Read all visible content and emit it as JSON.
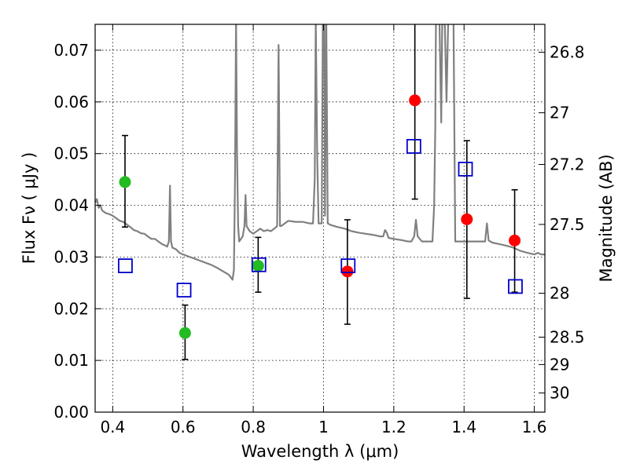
{
  "chart_data": {
    "type": "scatter",
    "xlabel": "Wavelength  λ (μm)",
    "ylabel": "Flux  Fν  ( μJy )",
    "y2label": "Magnitude (AB)",
    "xlim": [
      0.35,
      1.63
    ],
    "ylim": [
      0.0,
      0.075
    ],
    "grid": true,
    "x_ticks": [
      0.4,
      0.6,
      0.8,
      1.0,
      1.2,
      1.4,
      1.6
    ],
    "x_tick_labels": [
      "0.4",
      "0.6",
      "0.8",
      "1",
      "1.2",
      "1.4",
      "1.6"
    ],
    "y_ticks": [
      0.0,
      0.01,
      0.02,
      0.03,
      0.04,
      0.05,
      0.06,
      0.07
    ],
    "y_tick_labels": [
      "0.00",
      "0.01",
      "0.02",
      "0.03",
      "0.04",
      "0.05",
      "0.06",
      "0.07"
    ],
    "y2_ticks": [
      {
        "label": "26.8",
        "flux": 0.0696
      },
      {
        "label": "27",
        "flux": 0.0579
      },
      {
        "label": "27.2",
        "flux": 0.0479
      },
      {
        "label": "27.5",
        "flux": 0.0363
      },
      {
        "label": "28",
        "flux": 0.023
      },
      {
        "label": "28.5",
        "flux": 0.0145
      },
      {
        "label": "29",
        "flux": 0.0092
      },
      {
        "label": "30",
        "flux": 0.0037
      }
    ],
    "model_spectrum": {
      "color": "#808080",
      "points": [
        [
          0.35,
          0.0405
        ],
        [
          0.355,
          0.0412
        ],
        [
          0.36,
          0.0395
        ],
        [
          0.365,
          0.04
        ],
        [
          0.37,
          0.039
        ],
        [
          0.38,
          0.0385
        ],
        [
          0.39,
          0.0383
        ],
        [
          0.4,
          0.038
        ],
        [
          0.41,
          0.0375
        ],
        [
          0.42,
          0.037
        ],
        [
          0.43,
          0.0368
        ],
        [
          0.44,
          0.0363
        ],
        [
          0.45,
          0.0358
        ],
        [
          0.46,
          0.0352
        ],
        [
          0.47,
          0.035
        ],
        [
          0.48,
          0.0346
        ],
        [
          0.49,
          0.0345
        ],
        [
          0.5,
          0.034
        ],
        [
          0.51,
          0.0335
        ],
        [
          0.52,
          0.0335
        ],
        [
          0.53,
          0.033
        ],
        [
          0.54,
          0.0325
        ],
        [
          0.55,
          0.0322
        ],
        [
          0.555,
          0.032
        ],
        [
          0.56,
          0.033
        ],
        [
          0.563,
          0.0438
        ],
        [
          0.566,
          0.033
        ],
        [
          0.57,
          0.0318
        ],
        [
          0.58,
          0.0315
        ],
        [
          0.59,
          0.0308
        ],
        [
          0.6,
          0.0305
        ],
        [
          0.62,
          0.03
        ],
        [
          0.64,
          0.0295
        ],
        [
          0.66,
          0.029
        ],
        [
          0.68,
          0.0285
        ],
        [
          0.7,
          0.0278
        ],
        [
          0.72,
          0.027
        ],
        [
          0.73,
          0.0266
        ],
        [
          0.737,
          0.026
        ],
        [
          0.741,
          0.0256
        ],
        [
          0.745,
          0.0275
        ],
        [
          0.748,
          0.045
        ],
        [
          0.751,
          0.076
        ],
        [
          0.754,
          0.05
        ],
        [
          0.757,
          0.036
        ],
        [
          0.76,
          0.033
        ],
        [
          0.77,
          0.034
        ],
        [
          0.775,
          0.036
        ],
        [
          0.778,
          0.042
        ],
        [
          0.781,
          0.036
        ],
        [
          0.79,
          0.035
        ],
        [
          0.8,
          0.0345
        ],
        [
          0.81,
          0.035
        ],
        [
          0.82,
          0.0355
        ],
        [
          0.83,
          0.035
        ],
        [
          0.84,
          0.0352
        ],
        [
          0.85,
          0.035
        ],
        [
          0.86,
          0.0355
        ],
        [
          0.868,
          0.036
        ],
        [
          0.872,
          0.071
        ],
        [
          0.876,
          0.036
        ],
        [
          0.88,
          0.036
        ],
        [
          0.9,
          0.037
        ],
        [
          0.92,
          0.0368
        ],
        [
          0.94,
          0.0368
        ],
        [
          0.96,
          0.0365
        ],
        [
          0.97,
          0.0365
        ],
        [
          0.975,
          0.045
        ],
        [
          0.978,
          0.076
        ],
        [
          0.982,
          0.05
        ],
        [
          0.986,
          0.0365
        ],
        [
          0.995,
          0.0365
        ],
        [
          0.998,
          0.076
        ],
        [
          1.002,
          0.076
        ],
        [
          1.004,
          0.038
        ],
        [
          1.008,
          0.076
        ],
        [
          1.012,
          0.0365
        ],
        [
          1.02,
          0.0362
        ],
        [
          1.04,
          0.0358
        ],
        [
          1.06,
          0.0355
        ],
        [
          1.08,
          0.035
        ],
        [
          1.1,
          0.0347
        ],
        [
          1.12,
          0.0345
        ],
        [
          1.14,
          0.0343
        ],
        [
          1.16,
          0.034
        ],
        [
          1.17,
          0.034
        ],
        [
          1.175,
          0.0352
        ],
        [
          1.18,
          0.0347
        ],
        [
          1.185,
          0.0337
        ],
        [
          1.2,
          0.0335
        ],
        [
          1.22,
          0.0333
        ],
        [
          1.24,
          0.033
        ],
        [
          1.25,
          0.033
        ],
        [
          1.258,
          0.034
        ],
        [
          1.263,
          0.0372
        ],
        [
          1.268,
          0.034
        ],
        [
          1.28,
          0.033
        ],
        [
          1.3,
          0.033
        ],
        [
          1.31,
          0.033
        ],
        [
          1.315,
          0.04
        ],
        [
          1.318,
          0.055
        ],
        [
          1.32,
          0.076
        ],
        [
          1.33,
          0.076
        ],
        [
          1.335,
          0.056
        ],
        [
          1.338,
          0.076
        ],
        [
          1.345,
          0.076
        ],
        [
          1.35,
          0.06
        ],
        [
          1.355,
          0.076
        ],
        [
          1.37,
          0.076
        ],
        [
          1.375,
          0.033
        ],
        [
          1.4,
          0.033
        ],
        [
          1.42,
          0.033
        ],
        [
          1.44,
          0.033
        ],
        [
          1.46,
          0.033
        ],
        [
          1.465,
          0.0365
        ],
        [
          1.47,
          0.0332
        ],
        [
          1.48,
          0.0328
        ],
        [
          1.5,
          0.0325
        ],
        [
          1.52,
          0.0322
        ],
        [
          1.54,
          0.0318
        ],
        [
          1.56,
          0.0312
        ],
        [
          1.58,
          0.0308
        ],
        [
          1.6,
          0.0305
        ],
        [
          1.61,
          0.0308
        ],
        [
          1.62,
          0.0305
        ],
        [
          1.63,
          0.0305
        ]
      ]
    },
    "series": [
      {
        "marker": "circle",
        "color": "#22bb22",
        "points": [
          {
            "x": 0.435,
            "y": 0.0445,
            "ylo": 0.0358,
            "yhi": 0.0535
          },
          {
            "x": 0.606,
            "y": 0.0153,
            "ylo": 0.0102,
            "yhi": 0.0207
          },
          {
            "x": 0.814,
            "y": 0.0283,
            "ylo": 0.0232,
            "yhi": 0.0338
          }
        ]
      },
      {
        "marker": "circle",
        "color": "#ff0000",
        "points": [
          {
            "x": 1.068,
            "y": 0.0272,
            "ylo": 0.017,
            "yhi": 0.0372
          },
          {
            "x": 1.26,
            "y": 0.0603,
            "ylo": 0.0412,
            "yhi": 0.076
          },
          {
            "x": 1.408,
            "y": 0.0373,
            "ylo": 0.022,
            "yhi": 0.0525
          },
          {
            "x": 1.544,
            "y": 0.0332,
            "ylo": 0.0232,
            "yhi": 0.043
          }
        ]
      },
      {
        "marker": "open-square",
        "color": "#0000cc",
        "points": [
          {
            "x": 0.436,
            "y": 0.0283
          },
          {
            "x": 0.603,
            "y": 0.0236
          },
          {
            "x": 0.816,
            "y": 0.0285
          },
          {
            "x": 1.07,
            "y": 0.0283
          },
          {
            "x": 1.257,
            "y": 0.0514
          },
          {
            "x": 1.404,
            "y": 0.047
          },
          {
            "x": 1.546,
            "y": 0.0243
          }
        ]
      }
    ]
  }
}
